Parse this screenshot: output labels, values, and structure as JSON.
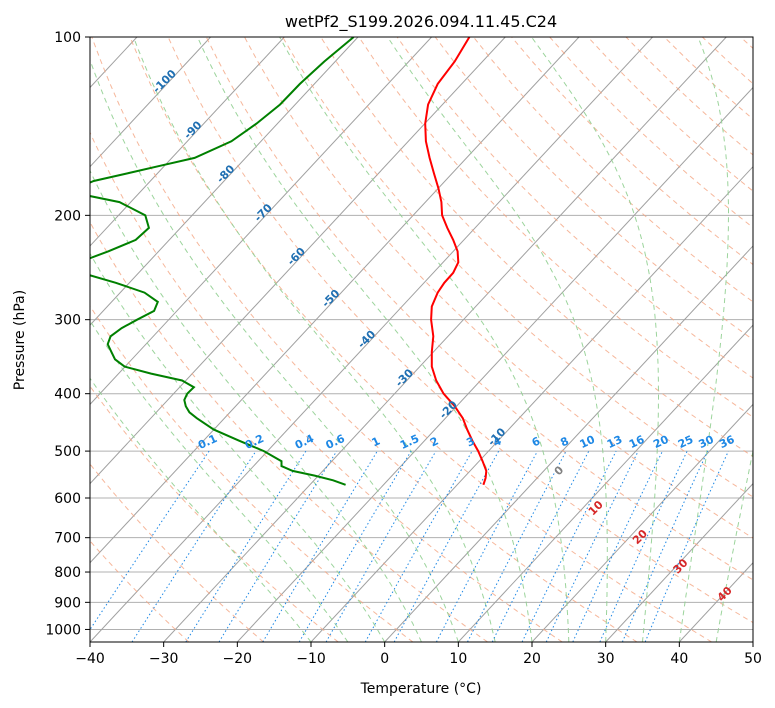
{
  "chart_data": {
    "type": "line",
    "title": "wetPf2_S199.2026.094.11.45.C24",
    "xlabel": "Temperature (°C)",
    "ylabel": "Pressure (hPa)",
    "xlim": [
      -40,
      50
    ],
    "ylim": [
      1050,
      100
    ],
    "y_scale": "log",
    "grid": true,
    "x_ticks": [
      -40,
      -30,
      -20,
      -10,
      0,
      10,
      20,
      30,
      40,
      50
    ],
    "y_ticks": [
      100,
      200,
      300,
      400,
      500,
      600,
      700,
      800,
      900,
      1000
    ],
    "colors": {
      "temperature": "#ff0000",
      "dewpoint": "#008000",
      "isotherm": "#a0a0a0",
      "dry_adiabat": "#f4a582",
      "moist_adiabat": "#91cf91",
      "mixing_ratio": "#1e88e5",
      "isotherm_label": "#1f6fb2",
      "moist_label": "#d62728",
      "zero_label": "#808080"
    },
    "isotherm_labels": [
      {
        "text": "-100",
        "t": -100,
        "p": 120
      },
      {
        "text": "-90",
        "t": -90,
        "p": 145
      },
      {
        "text": "-80",
        "t": -80,
        "p": 172
      },
      {
        "text": "-70",
        "t": -70,
        "p": 200
      },
      {
        "text": "-60",
        "t": -60,
        "p": 237
      },
      {
        "text": "-50",
        "t": -50,
        "p": 279
      },
      {
        "text": "-40",
        "t": -40,
        "p": 327
      },
      {
        "text": "-30",
        "t": -30,
        "p": 380
      },
      {
        "text": "-20",
        "t": -20,
        "p": 430
      },
      {
        "text": "-10",
        "t": -10,
        "p": 478
      }
    ],
    "mixing_ratio_labels": [
      {
        "text": "0.1",
        "w": 0.1
      },
      {
        "text": "0.2",
        "w": 0.2
      },
      {
        "text": "0.4",
        "w": 0.4
      },
      {
        "text": "0.6",
        "w": 0.6
      },
      {
        "text": "1",
        "w": 1
      },
      {
        "text": "1.5",
        "w": 1.5
      },
      {
        "text": "2",
        "w": 2
      },
      {
        "text": "3",
        "w": 3
      },
      {
        "text": "4",
        "w": 4
      },
      {
        "text": "6",
        "w": 6
      },
      {
        "text": "8",
        "w": 8
      },
      {
        "text": "10",
        "w": 10
      },
      {
        "text": "13",
        "w": 13
      },
      {
        "text": "16",
        "w": 16
      },
      {
        "text": "20",
        "w": 20
      },
      {
        "text": "25",
        "w": 25
      },
      {
        "text": "30",
        "w": 30
      },
      {
        "text": "36",
        "w": 36
      }
    ],
    "moist_labels": [
      {
        "text": "0",
        "t": 24,
        "p": 545
      },
      {
        "text": "10",
        "t": 29,
        "p": 630
      },
      {
        "text": "20",
        "t": 35,
        "p": 705
      },
      {
        "text": "30",
        "t": 40.5,
        "p": 790
      },
      {
        "text": "40",
        "t": 46.5,
        "p": 880
      }
    ],
    "series": [
      {
        "role": "temperature",
        "points": [
          {
            "p": 100,
            "x": 11.5
          },
          {
            "p": 110,
            "x": 9.5
          },
          {
            "p": 120,
            "x": 7.2
          },
          {
            "p": 130,
            "x": 5.9
          },
          {
            "p": 140,
            "x": 5.5
          },
          {
            "p": 150,
            "x": 5.6
          },
          {
            "p": 160,
            "x": 6.1
          },
          {
            "p": 170,
            "x": 6.7
          },
          {
            "p": 180,
            "x": 7.3
          },
          {
            "p": 190,
            "x": 7.7
          },
          {
            "p": 200,
            "x": 7.8
          },
          {
            "p": 210,
            "x": 8.5
          },
          {
            "p": 220,
            "x": 9.3
          },
          {
            "p": 230,
            "x": 9.9
          },
          {
            "p": 240,
            "x": 10.0
          },
          {
            "p": 250,
            "x": 9.3
          },
          {
            "p": 260,
            "x": 8.1
          },
          {
            "p": 270,
            "x": 7.2
          },
          {
            "p": 285,
            "x": 6.4
          },
          {
            "p": 300,
            "x": 6.3
          },
          {
            "p": 320,
            "x": 6.6
          },
          {
            "p": 340,
            "x": 6.4
          },
          {
            "p": 360,
            "x": 6.4
          },
          {
            "p": 380,
            "x": 7.0
          },
          {
            "p": 400,
            "x": 8.0
          },
          {
            "p": 420,
            "x": 9.5
          },
          {
            "p": 440,
            "x": 10.6
          },
          {
            "p": 460,
            "x": 11.2
          },
          {
            "p": 480,
            "x": 11.9
          },
          {
            "p": 500,
            "x": 12.7
          },
          {
            "p": 520,
            "x": 13.3
          },
          {
            "p": 540,
            "x": 13.8
          },
          {
            "p": 555,
            "x": 13.7
          },
          {
            "p": 570,
            "x": 13.4
          }
        ]
      },
      {
        "role": "dewpoint",
        "points": [
          {
            "p": 100,
            "x": -4.2
          },
          {
            "p": 110,
            "x": -8.2
          },
          {
            "p": 120,
            "x": -11.5
          },
          {
            "p": 130,
            "x": -14.2
          },
          {
            "p": 140,
            "x": -17.4
          },
          {
            "p": 150,
            "x": -20.8
          },
          {
            "p": 160,
            "x": -25.8
          },
          {
            "p": 165,
            "x": -30.5
          },
          {
            "p": 170,
            "x": -35.0
          },
          {
            "p": 175,
            "x": -39.5
          },
          {
            "p": 180,
            "x": -41.8
          },
          {
            "p": 185,
            "x": -40.5
          },
          {
            "p": 190,
            "x": -36.0
          },
          {
            "p": 200,
            "x": -32.5
          },
          {
            "p": 210,
            "x": -32.0
          },
          {
            "p": 220,
            "x": -33.8
          },
          {
            "p": 230,
            "x": -37.5
          },
          {
            "p": 240,
            "x": -41.5
          },
          {
            "p": 245,
            "x": -42.5
          },
          {
            "p": 250,
            "x": -41.2
          },
          {
            "p": 260,
            "x": -36.5
          },
          {
            "p": 270,
            "x": -32.6
          },
          {
            "p": 280,
            "x": -30.8
          },
          {
            "p": 290,
            "x": -31.3
          },
          {
            "p": 300,
            "x": -33.6
          },
          {
            "p": 310,
            "x": -35.7
          },
          {
            "p": 320,
            "x": -37.2
          },
          {
            "p": 330,
            "x": -37.6
          },
          {
            "p": 340,
            "x": -37.1
          },
          {
            "p": 350,
            "x": -36.6
          },
          {
            "p": 360,
            "x": -35.3
          },
          {
            "p": 370,
            "x": -31.7
          },
          {
            "p": 380,
            "x": -27.5
          },
          {
            "p": 390,
            "x": -25.9
          },
          {
            "p": 400,
            "x": -26.8
          },
          {
            "p": 410,
            "x": -27.2
          },
          {
            "p": 420,
            "x": -27.0
          },
          {
            "p": 430,
            "x": -26.5
          },
          {
            "p": 440,
            "x": -25.5
          },
          {
            "p": 460,
            "x": -23.2
          },
          {
            "p": 480,
            "x": -19.8
          },
          {
            "p": 500,
            "x": -16.4
          },
          {
            "p": 520,
            "x": -14.0
          },
          {
            "p": 530,
            "x": -14.0
          },
          {
            "p": 540,
            "x": -12.5
          },
          {
            "p": 550,
            "x": -9.5
          },
          {
            "p": 560,
            "x": -7.0
          },
          {
            "p": 570,
            "x": -5.3
          }
        ]
      }
    ]
  }
}
